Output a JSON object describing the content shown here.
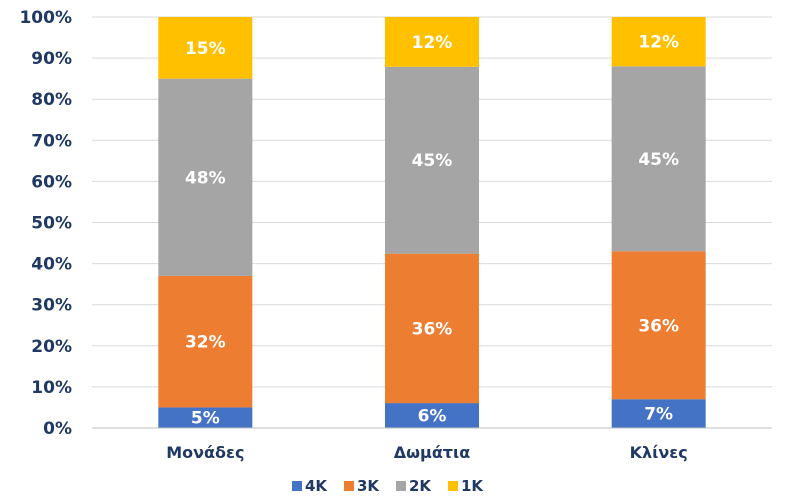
{
  "chart_data": {
    "type": "bar",
    "stacked": true,
    "percent_stacked": true,
    "categories": [
      "Μονάδες",
      "Δωμάτια",
      "Κλίνες"
    ],
    "series": [
      {
        "name": "4K",
        "color": "#4472c4",
        "values": [
          5,
          6,
          7
        ],
        "labels": [
          "5%",
          "6%",
          "7%"
        ]
      },
      {
        "name": "3K",
        "color": "#ed7d31",
        "values": [
          32,
          36,
          36
        ],
        "labels": [
          "32%",
          "36%",
          "36%"
        ]
      },
      {
        "name": "2K",
        "color": "#a5a5a5",
        "values": [
          48,
          45,
          45
        ],
        "labels": [
          "48%",
          "45%",
          "45%"
        ]
      },
      {
        "name": "1K",
        "color": "#ffc000",
        "values": [
          15,
          12,
          12
        ],
        "labels": [
          "15%",
          "12%",
          "12%"
        ]
      }
    ],
    "y_ticks": [
      "0%",
      "10%",
      "20%",
      "30%",
      "40%",
      "50%",
      "60%",
      "70%",
      "80%",
      "90%",
      "100%"
    ],
    "ylim": [
      0,
      100
    ],
    "grid": true,
    "legend_position": "bottom",
    "title": "",
    "xlabel": "",
    "ylabel": ""
  }
}
